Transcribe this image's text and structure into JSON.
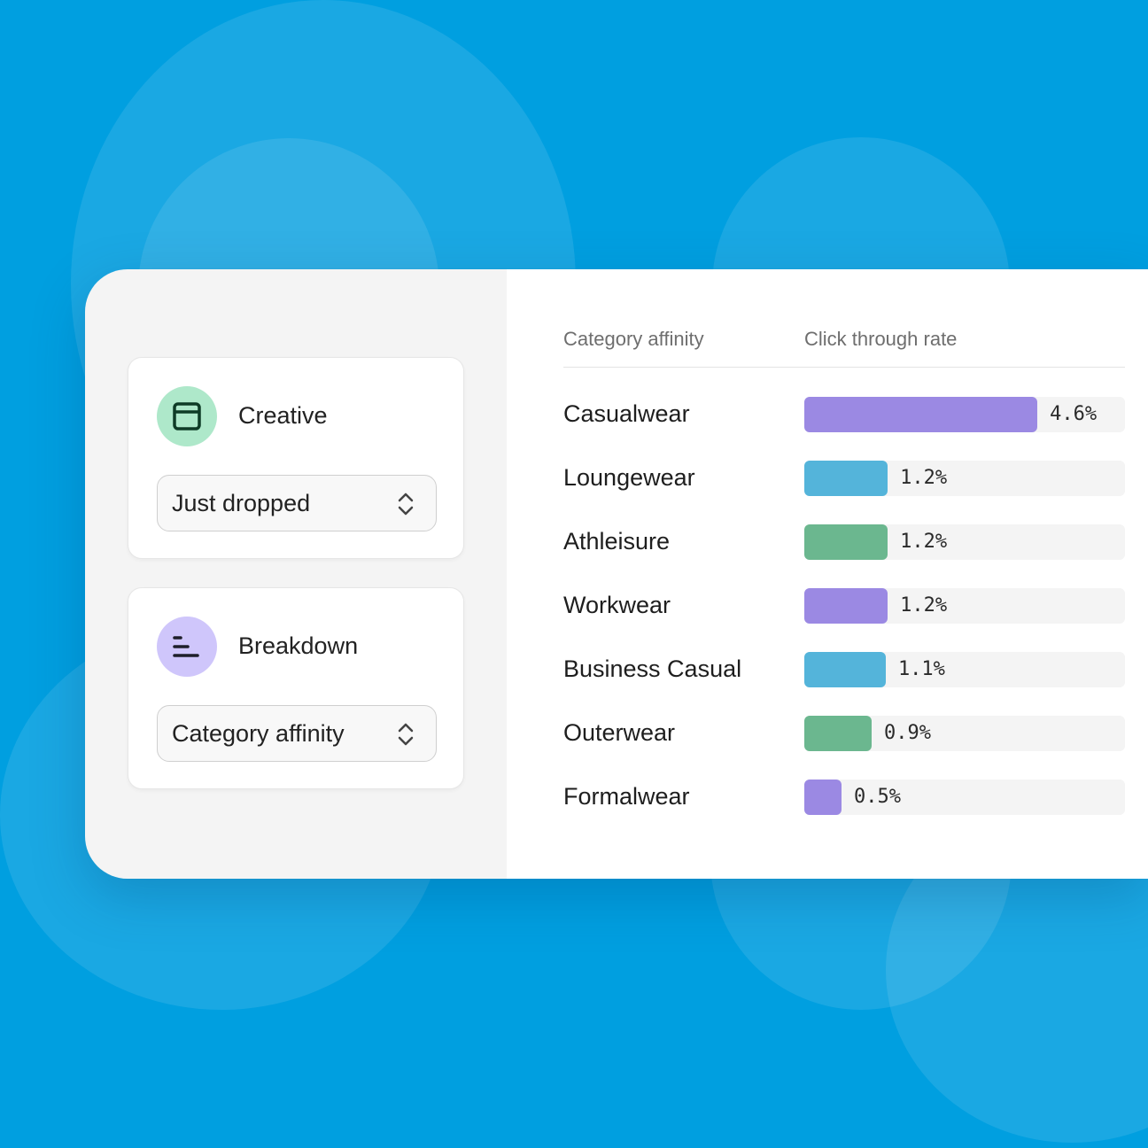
{
  "colors": {
    "background": "#009FE0",
    "purple": "#9B89E3",
    "blue": "#54B4DA",
    "green": "#6BB78F",
    "creative_icon_bg": "#AEE8CA",
    "breakdown_icon_bg": "#CFC6FB"
  },
  "controls": {
    "creative": {
      "title": "Creative",
      "icon": "layout-window-icon",
      "selected": "Just dropped"
    },
    "breakdown": {
      "title": "Breakdown",
      "icon": "bar-list-icon",
      "selected": "Category affinity"
    }
  },
  "chart_data": {
    "type": "bar",
    "orientation": "horizontal",
    "xlabel": "Click through rate",
    "ylabel": "Category affinity",
    "categories": [
      "Casualwear",
      "Loungewear",
      "Athleisure",
      "Workwear",
      "Business Casual",
      "Outerwear",
      "Formalwear"
    ],
    "values": [
      4.6,
      1.2,
      1.2,
      1.2,
      1.1,
      0.9,
      0.5
    ],
    "value_labels": [
      "4.6%",
      "1.2%",
      "1.2%",
      "1.2%",
      "1.1%",
      "0.9%",
      "0.5%"
    ],
    "fill_percent": [
      72.7,
      26,
      26,
      26,
      25.4,
      21,
      11.6
    ],
    "bar_colors": [
      "#9B89E3",
      "#54B4DA",
      "#6BB78F",
      "#9B89E3",
      "#54B4DA",
      "#6BB78F",
      "#9B89E3"
    ],
    "grid": false
  }
}
